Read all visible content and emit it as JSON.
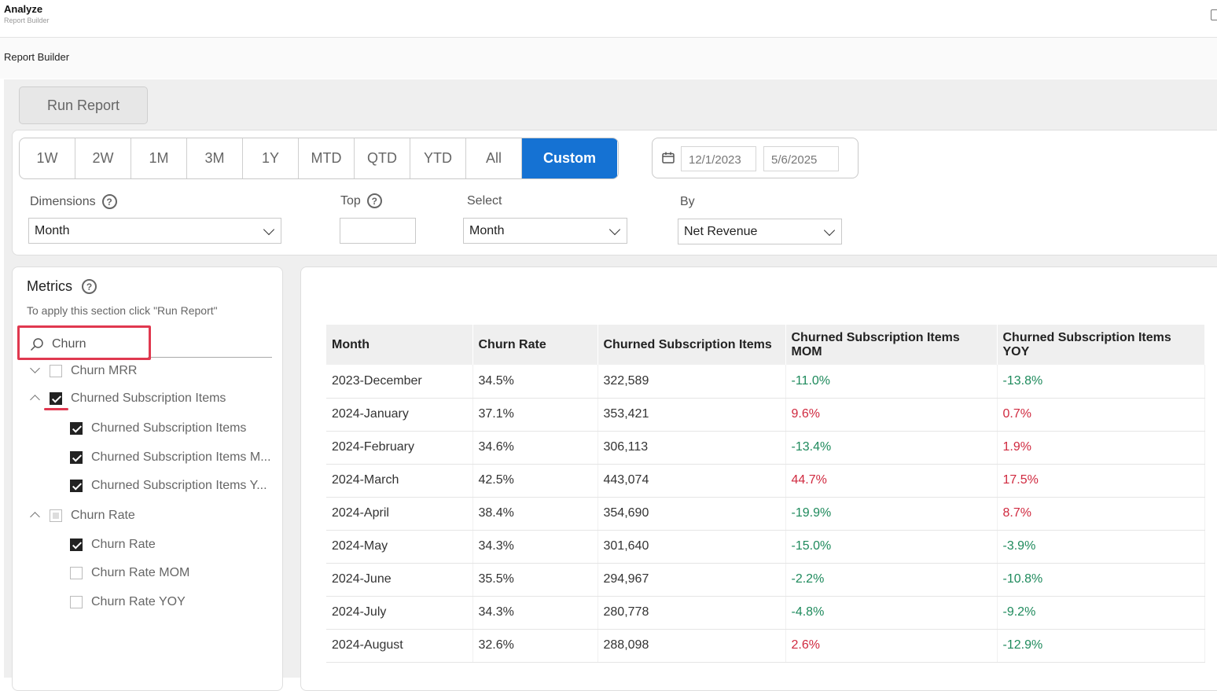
{
  "app": {
    "title": "Analyze",
    "subtitle": "Report Builder"
  },
  "breadcrumb": "Report Builder",
  "run_report_label": "Run Report",
  "ranges": [
    {
      "label": "1W",
      "active": false
    },
    {
      "label": "2W",
      "active": false
    },
    {
      "label": "1M",
      "active": false
    },
    {
      "label": "3M",
      "active": false
    },
    {
      "label": "1Y",
      "active": false
    },
    {
      "label": "MTD",
      "active": false
    },
    {
      "label": "QTD",
      "active": false
    },
    {
      "label": "YTD",
      "active": false
    },
    {
      "label": "All",
      "active": false
    },
    {
      "label": "Custom",
      "active": true
    }
  ],
  "dates": {
    "start": "12/1/2023",
    "end": "5/6/2025"
  },
  "filters": {
    "dimensions_label": "Dimensions",
    "dimensions_value": "Month",
    "top_label": "Top",
    "top_value": "",
    "select_label": "Select",
    "select_value": "Month",
    "by_label": "By",
    "by_value": "Net Revenue"
  },
  "metrics": {
    "title": "Metrics",
    "hint": "To apply this section click \"Run Report\"",
    "search_value": "Churn",
    "tree": [
      {
        "label": "Churn MRR",
        "level": 0,
        "state": "unchecked",
        "expanded": false
      },
      {
        "label": "Churned Subscription Items",
        "level": 0,
        "state": "checked",
        "expanded": true
      },
      {
        "label": "Churned Subscription Items",
        "level": 1,
        "state": "checked"
      },
      {
        "label": "Churned Subscription Items M...",
        "level": 1,
        "state": "checked"
      },
      {
        "label": "Churned Subscription Items Y...",
        "level": 1,
        "state": "checked"
      },
      {
        "label": "Churn Rate",
        "level": 0,
        "state": "partial",
        "expanded": true
      },
      {
        "label": "Churn Rate",
        "level": 1,
        "state": "checked"
      },
      {
        "label": "Churn Rate MOM",
        "level": 1,
        "state": "unchecked"
      },
      {
        "label": "Churn Rate YOY",
        "level": 1,
        "state": "unchecked"
      }
    ]
  },
  "table": {
    "columns": [
      "Month",
      "Churn Rate",
      "Churned Subscription Items",
      "Churned Subscription Items MOM",
      "Churned Subscription Items YOY"
    ],
    "rows": [
      [
        "2023-December",
        "34.5%",
        "322,589",
        "-11.0%",
        "-13.8%"
      ],
      [
        "2024-January",
        "37.1%",
        "353,421",
        "9.6%",
        "0.7%"
      ],
      [
        "2024-February",
        "34.6%",
        "306,113",
        "-13.4%",
        "1.9%"
      ],
      [
        "2024-March",
        "42.5%",
        "443,074",
        "44.7%",
        "17.5%"
      ],
      [
        "2024-April",
        "38.4%",
        "354,690",
        "-19.9%",
        "8.7%"
      ],
      [
        "2024-May",
        "34.3%",
        "301,640",
        "-15.0%",
        "-3.9%"
      ],
      [
        "2024-June",
        "35.5%",
        "294,967",
        "-2.2%",
        "-10.8%"
      ],
      [
        "2024-July",
        "34.3%",
        "280,778",
        "-4.8%",
        "-9.2%"
      ],
      [
        "2024-August",
        "32.6%",
        "288,098",
        "2.6%",
        "-12.9%"
      ]
    ]
  },
  "colors": {
    "accent": "#1572d3",
    "negative": "#1e8a5c",
    "positive": "#d0293f",
    "highlight": "#e0384f"
  }
}
